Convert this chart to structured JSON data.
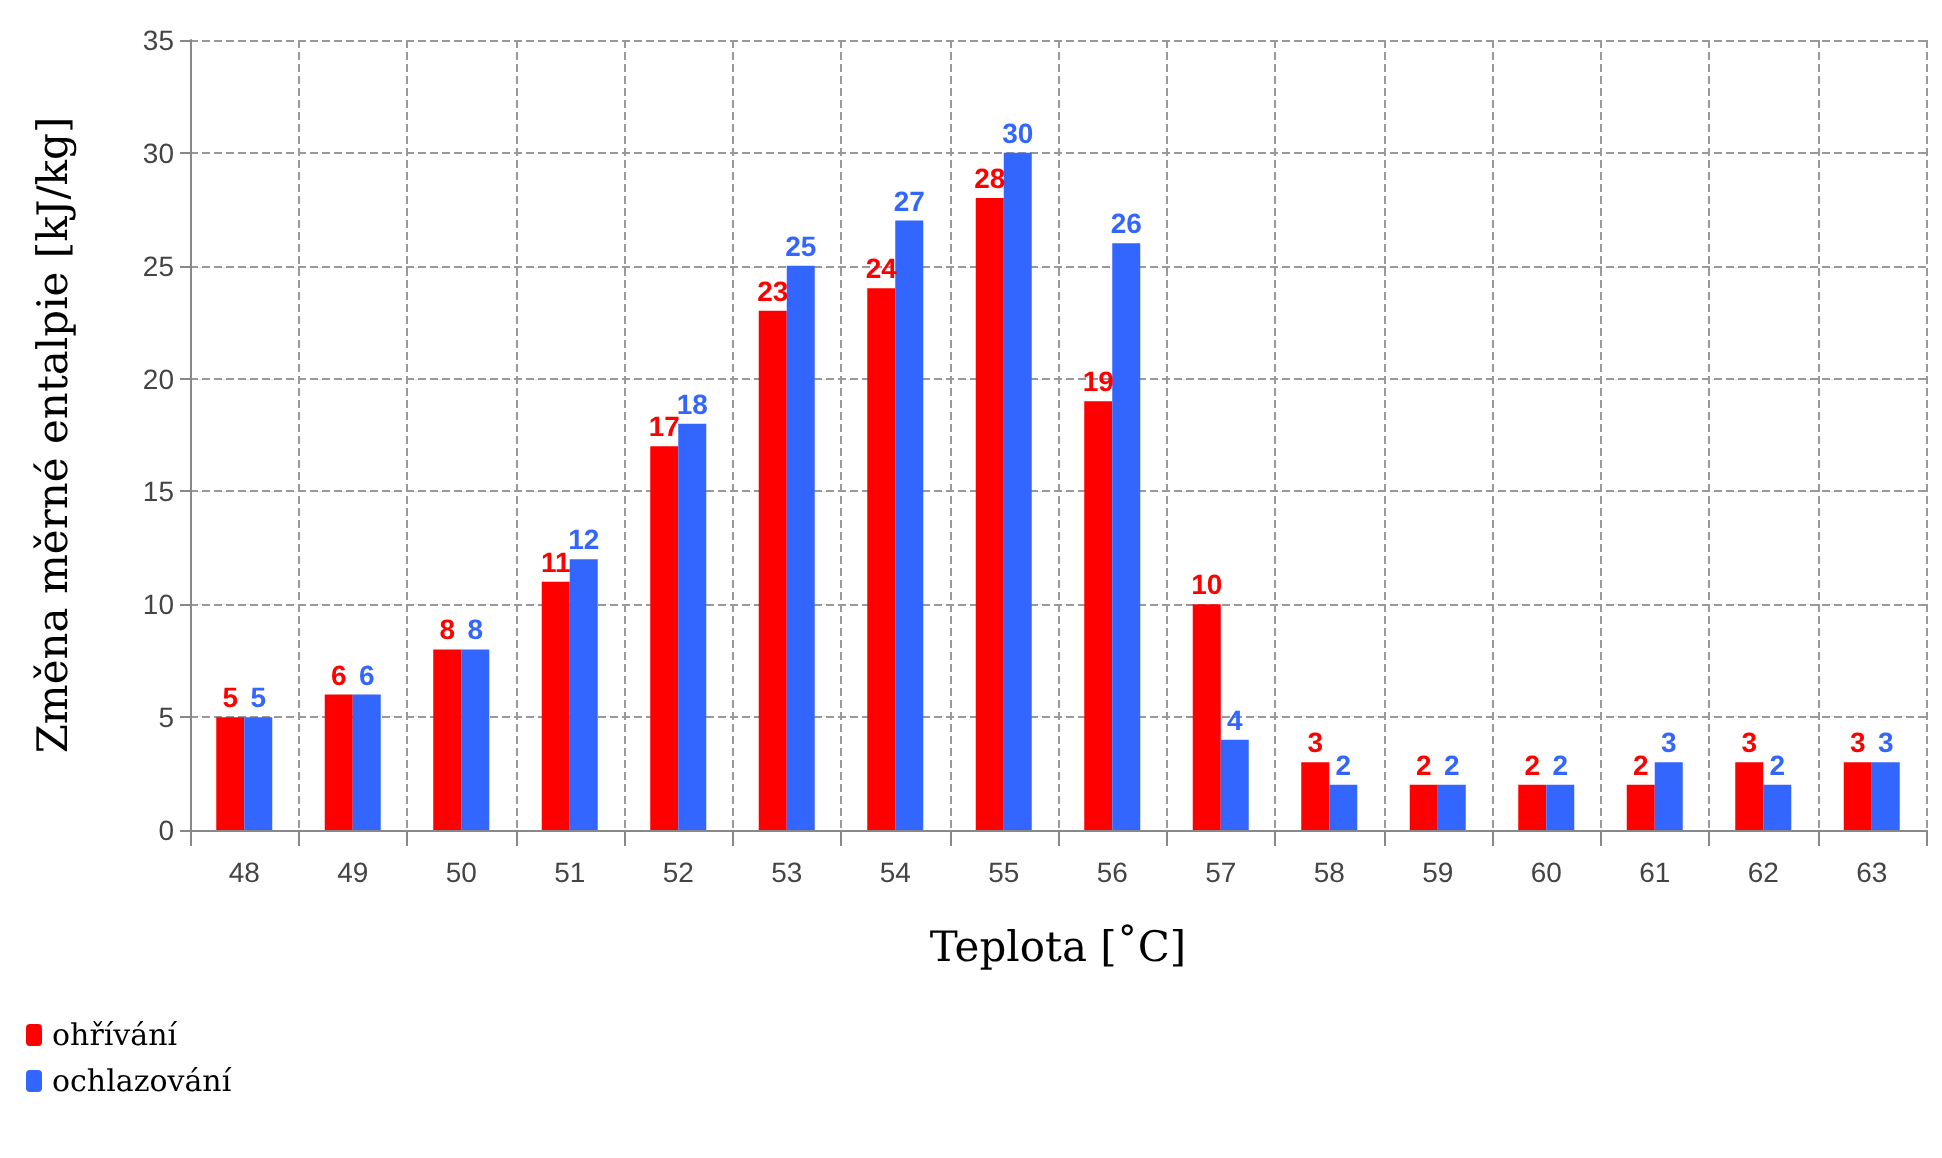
{
  "chart_data": {
    "type": "bar",
    "xlabel": "Teplota [˚C]",
    "ylabel": "Změna měrné entalpie [kJ/kg]",
    "categories": [
      "48",
      "49",
      "50",
      "51",
      "52",
      "53",
      "54",
      "55",
      "56",
      "57",
      "58",
      "59",
      "60",
      "61",
      "62",
      "63"
    ],
    "series": [
      {
        "name": "ohřívání",
        "color": "#ff0000",
        "values": [
          5,
          6,
          8,
          11,
          17,
          23,
          24,
          28,
          19,
          10,
          3,
          2,
          2,
          2,
          3,
          3
        ]
      },
      {
        "name": "ochlazování",
        "color": "#3366ff",
        "values": [
          5,
          6,
          8,
          12,
          18,
          25,
          27,
          30,
          26,
          4,
          2,
          2,
          2,
          3,
          2,
          3
        ]
      }
    ],
    "ylim": [
      0,
      35
    ],
    "yticks": [
      0,
      5,
      10,
      15,
      20,
      25,
      30,
      35
    ],
    "grid": true,
    "legend": "bottom left",
    "data_labels": true
  }
}
